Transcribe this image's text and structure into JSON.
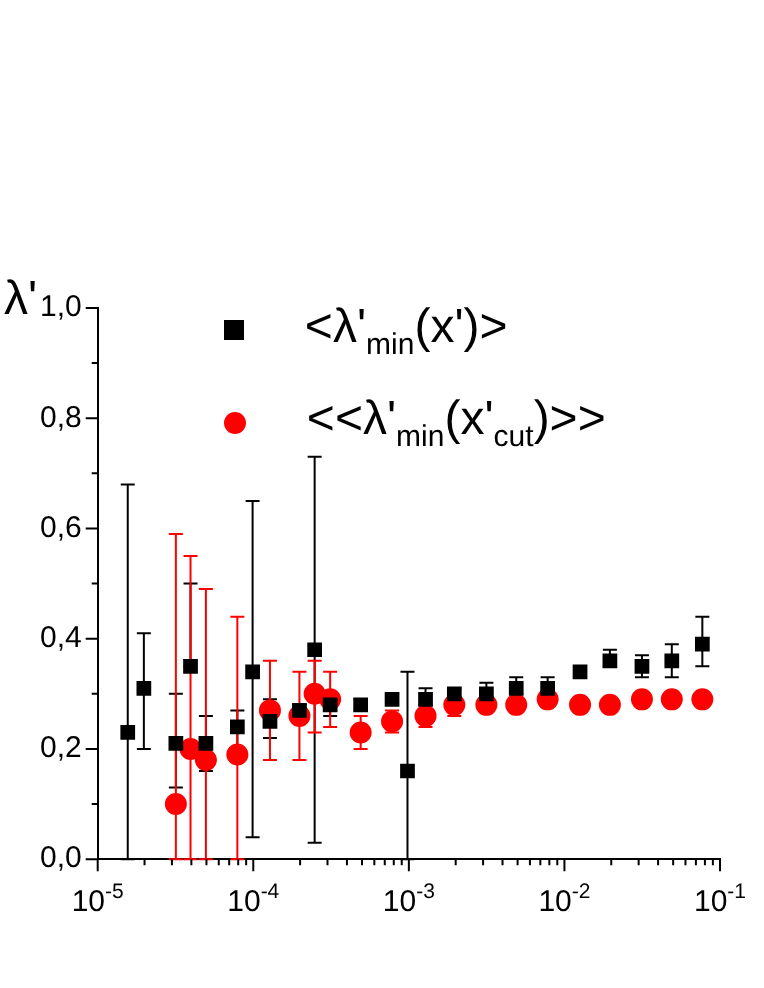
{
  "chart_data": {
    "type": "scatter",
    "ylabel": "λ'",
    "legend": "top",
    "log": "x",
    "grid": false,
    "xlim": [
      1e-05,
      0.1
    ],
    "xticks": [
      {
        "value": 1e-05,
        "label": "10$^{-5}$"
      },
      {
        "value": 2e-05,
        "label": null
      },
      {
        "value": 3e-05,
        "label": null
      },
      {
        "value": 4e-05,
        "label": null
      },
      {
        "value": 5e-05,
        "label": null
      },
      {
        "value": 6e-05,
        "label": null
      },
      {
        "value": 7e-05,
        "label": null
      },
      {
        "value": 8e-05,
        "label": null
      },
      {
        "value": 9e-05,
        "label": null
      },
      {
        "value": 0.0001,
        "label": "10$^{-4}$"
      },
      {
        "value": 0.0002,
        "label": null
      },
      {
        "value": 0.0003,
        "label": null
      },
      {
        "value": 0.0004,
        "label": null
      },
      {
        "value": 0.0005,
        "label": null
      },
      {
        "value": 0.0006,
        "label": null
      },
      {
        "value": 0.0007,
        "label": null
      },
      {
        "value": 0.0008,
        "label": null
      },
      {
        "value": 0.0009,
        "label": null
      },
      {
        "value": 0.001,
        "label": "10$^{-3}$"
      },
      {
        "value": 0.002,
        "label": null
      },
      {
        "value": 0.003,
        "label": null
      },
      {
        "value": 0.004,
        "label": null
      },
      {
        "value": 0.005,
        "label": null
      },
      {
        "value": 0.006,
        "label": null
      },
      {
        "value": 0.007,
        "label": null
      },
      {
        "value": 0.008,
        "label": null
      },
      {
        "value": 0.009,
        "label": null
      },
      {
        "value": 0.01,
        "label": "10$^{-2}$"
      },
      {
        "value": 0.02,
        "label": null
      },
      {
        "value": 0.03,
        "label": null
      },
      {
        "value": 0.04,
        "label": null
      },
      {
        "value": 0.05,
        "label": null
      },
      {
        "value": 0.06,
        "label": null
      },
      {
        "value": 0.07,
        "label": null
      },
      {
        "value": 0.08,
        "label": null
      },
      {
        "value": 0.09,
        "label": null
      },
      {
        "value": 0.1,
        "label": "10$^{-1}$"
      }
    ],
    "ylim": [
      0,
      1
    ],
    "yticks": [
      {
        "value": 0,
        "label": "0,0"
      },
      {
        "value": 0.1,
        "label": null
      },
      {
        "value": 0.2,
        "label": "0,2"
      },
      {
        "value": 0.3,
        "label": null
      },
      {
        "value": 0.4,
        "label": "0,4"
      },
      {
        "value": 0.5,
        "label": null
      },
      {
        "value": 0.6,
        "label": "0,6"
      },
      {
        "value": 0.7,
        "label": null
      },
      {
        "value": 0.8,
        "label": "0,8"
      },
      {
        "value": 0.9,
        "label": null
      },
      {
        "value": 1,
        "label": "1,0"
      }
    ],
    "series": [
      {
        "name": "<λ'$_{min}$(x')>",
        "color": "#000000",
        "marker": "square",
        "x": [
          1.56e-05,
          1.98e-05,
          3.18e-05,
          3.95e-05,
          4.96e-05,
          7.9e-05,
          9.9e-05,
          0.000128,
          0.000198,
          0.000248,
          0.000312,
          0.00049,
          0.00078,
          0.00098,
          0.00128,
          0.00196,
          0.00315,
          0.0049,
          0.0078,
          0.0126,
          0.0196,
          0.0315,
          0.049,
          0.077
        ],
        "values": [
          0.23,
          0.31,
          0.21,
          0.35,
          0.21,
          0.24,
          0.34,
          0.25,
          0.27,
          0.38,
          0.28,
          0.28,
          0.29,
          0.16,
          0.29,
          0.3,
          0.3,
          0.31,
          0.31,
          0.34,
          0.36,
          0.35,
          0.36,
          0.39
        ],
        "errors": [
          [
            0,
            0.68
          ],
          [
            0.2,
            0.41
          ],
          [
            0.13,
            0.3
          ],
          [
            0.35,
            0.5
          ],
          [
            0.16,
            0.26
          ],
          [
            0.2,
            0.27
          ],
          [
            0.04,
            0.65
          ],
          [
            0.22,
            0.29
          ],
          [
            0.25,
            0.28
          ],
          [
            0.03,
            0.73
          ],
          [
            0.26,
            0.29
          ],
          [
            0.27,
            0.29
          ],
          [
            0.28,
            0.3
          ],
          [
            0,
            0.34
          ],
          [
            0.28,
            0.31
          ],
          [
            0.29,
            0.31
          ],
          [
            0.29,
            0.32
          ],
          [
            0.3,
            0.33
          ],
          [
            0.3,
            0.33
          ],
          [
            0.33,
            0.35
          ],
          [
            0.35,
            0.38
          ],
          [
            0.33,
            0.37
          ],
          [
            0.33,
            0.39
          ],
          [
            0.35,
            0.44
          ]
        ]
      },
      {
        "name": "<<λ'$_{min}$(x'$_{cut}$)>>",
        "color": "#ff0000",
        "marker": "circle",
        "x": [
          3.18e-05,
          3.95e-05,
          4.96e-05,
          7.9e-05,
          0.000128,
          0.000198,
          0.000248,
          0.000312,
          0.00049,
          0.00078,
          0.00128,
          0.00196,
          0.00315,
          0.0049,
          0.0078,
          0.0126,
          0.0196,
          0.0315,
          0.049,
          0.077
        ],
        "values": [
          0.1,
          0.2,
          0.18,
          0.19,
          0.27,
          0.26,
          0.3,
          0.29,
          0.23,
          0.25,
          0.26,
          0.28,
          0.28,
          0.28,
          0.29,
          0.28,
          0.28,
          0.29,
          0.29,
          0.29
        ],
        "errors": [
          [
            0,
            0.59
          ],
          [
            0,
            0.55
          ],
          [
            0,
            0.49
          ],
          [
            0,
            0.44
          ],
          [
            0.18,
            0.36
          ],
          [
            0.18,
            0.34
          ],
          [
            0.23,
            0.36
          ],
          [
            0.24,
            0.34
          ],
          [
            0.2,
            0.26
          ],
          [
            0.23,
            0.27
          ],
          [
            0.24,
            0.26
          ],
          [
            0.26,
            0.29
          ],
          null,
          null,
          null,
          null,
          null,
          null,
          null,
          null
        ]
      }
    ]
  }
}
